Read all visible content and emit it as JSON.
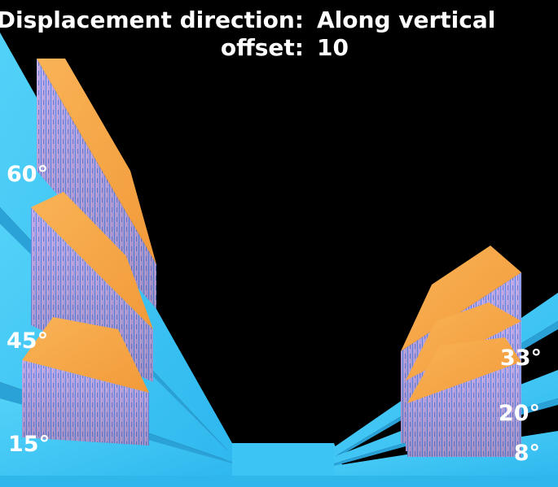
{
  "header": {
    "direction_label": "Displacement direction:",
    "direction_value": "Along vertical",
    "offset_label": "offset:",
    "offset_value": "10"
  },
  "angles": {
    "left": [
      "60°",
      "45°",
      "15°"
    ],
    "right": [
      "33°",
      "20°",
      "8°"
    ]
  },
  "colors": {
    "background": "#000000",
    "ramp": "#3ec6f5",
    "top_face": "#f7a94a",
    "side_face": "#9fa6ee",
    "label_text": "#ffffff"
  }
}
